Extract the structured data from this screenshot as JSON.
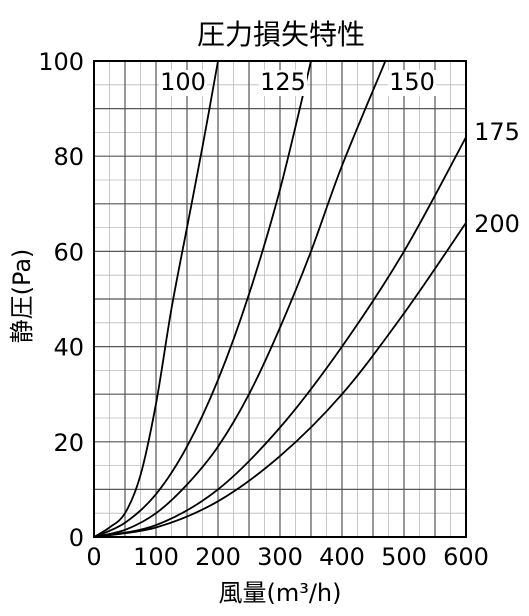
{
  "chart_data": {
    "type": "line",
    "title": "圧力損失特性",
    "xlabel": "風量(m³/h)",
    "ylabel": "静圧(Pa)",
    "xlim": [
      0,
      600
    ],
    "ylim": [
      0,
      100
    ],
    "xticks": [
      "0",
      "100",
      "200",
      "300",
      "400",
      "500",
      "600"
    ],
    "yticks": [
      "0",
      "20",
      "40",
      "60",
      "80",
      "100"
    ],
    "grid": true,
    "series": [
      {
        "name": "100",
        "x": [
          0,
          25,
          50,
          75,
          100,
          125,
          150,
          175,
          200
        ],
        "y": [
          0,
          2,
          5,
          13,
          28,
          48,
          65,
          82,
          100
        ]
      },
      {
        "name": "125",
        "x": [
          0,
          50,
          100,
          150,
          200,
          250,
          300,
          350
        ],
        "y": [
          0,
          3,
          9,
          19,
          33,
          51,
          73,
          100
        ]
      },
      {
        "name": "150",
        "x": [
          0,
          50,
          100,
          150,
          200,
          250,
          300,
          350,
          400,
          470
        ],
        "y": [
          0,
          1.5,
          5,
          11,
          19,
          30,
          44,
          60,
          78,
          100
        ]
      },
      {
        "name": "175",
        "x": [
          0,
          100,
          200,
          300,
          400,
          500,
          600
        ],
        "y": [
          0,
          2.5,
          10,
          23,
          40,
          60,
          84
        ]
      },
      {
        "name": "200",
        "x": [
          0,
          100,
          200,
          300,
          400,
          500,
          600
        ],
        "y": [
          0,
          2,
          7.5,
          17,
          30,
          47,
          66
        ]
      }
    ]
  }
}
